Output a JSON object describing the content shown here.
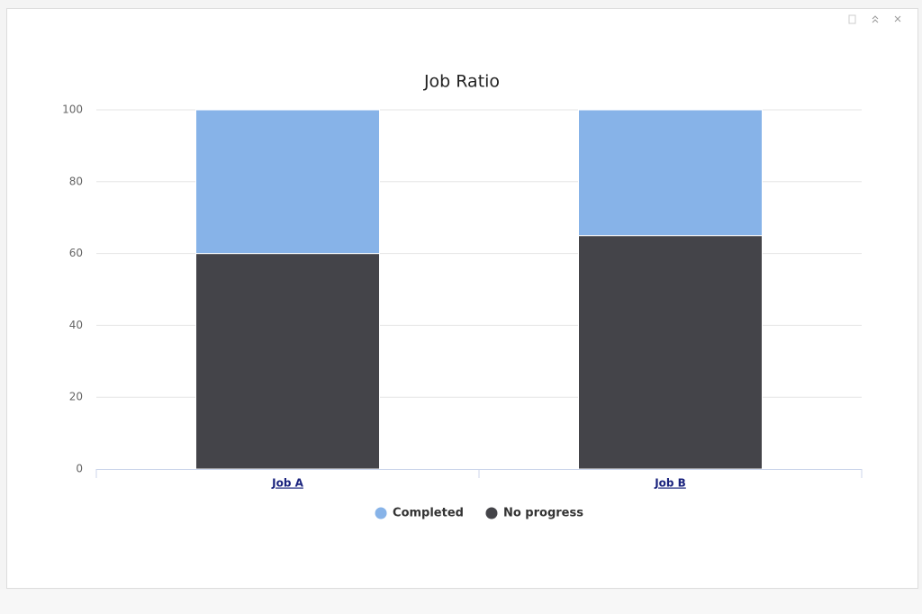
{
  "chart_data": {
    "type": "stacked_bar",
    "title": "Job Ratio",
    "categories": [
      "Job A",
      "Job B"
    ],
    "series": [
      {
        "name": "Completed",
        "color": "#87b3e8",
        "values": [
          40,
          35
        ]
      },
      {
        "name": "No progress",
        "color": "#444449",
        "values": [
          60,
          65
        ]
      }
    ],
    "ylim": [
      0,
      100
    ],
    "yticks": [
      0,
      20,
      40,
      60,
      80,
      100
    ],
    "grid": true,
    "legend": "bottom"
  }
}
